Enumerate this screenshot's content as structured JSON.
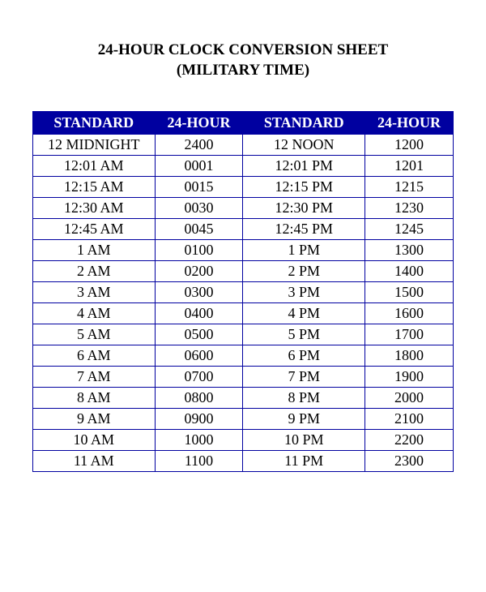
{
  "title": {
    "line1": "24-HOUR CLOCK CONVERSION SHEET",
    "line2": "(MILITARY TIME)"
  },
  "table": {
    "type": "table",
    "header_bg": "#0000a0",
    "header_color": "#ffffff",
    "border_color": "#0000a0",
    "cell_bg": "#ffffff",
    "cell_color": "#000000",
    "font_family": "Times New Roman",
    "header_fontsize": 18,
    "cell_fontsize": 18,
    "columns": [
      "STANDARD",
      "24-HOUR",
      "STANDARD",
      "24-HOUR"
    ],
    "col_widths_pct": [
      29,
      21,
      29,
      21
    ],
    "rows": [
      [
        "12 MIDNIGHT",
        "2400",
        "12 NOON",
        "1200"
      ],
      [
        "12:01 AM",
        "0001",
        "12:01 PM",
        "1201"
      ],
      [
        "12:15 AM",
        "0015",
        "12:15 PM",
        "1215"
      ],
      [
        "12:30 AM",
        "0030",
        "12:30 PM",
        "1230"
      ],
      [
        "12:45 AM",
        "0045",
        "12:45 PM",
        "1245"
      ],
      [
        "1 AM",
        "0100",
        "1 PM",
        "1300"
      ],
      [
        "2 AM",
        "0200",
        "2 PM",
        "1400"
      ],
      [
        "3 AM",
        "0300",
        "3 PM",
        "1500"
      ],
      [
        "4 AM",
        "0400",
        "4 PM",
        "1600"
      ],
      [
        "5 AM",
        "0500",
        "5 PM",
        "1700"
      ],
      [
        "6 AM",
        "0600",
        "6 PM",
        "1800"
      ],
      [
        "7 AM",
        "0700",
        "7 PM",
        "1900"
      ],
      [
        "8 AM",
        "0800",
        "8 PM",
        "2000"
      ],
      [
        "9 AM",
        "0900",
        "9 PM",
        "2100"
      ],
      [
        "10 AM",
        "1000",
        "10 PM",
        "2200"
      ],
      [
        "11 AM",
        "1100",
        "11 PM",
        "2300"
      ]
    ]
  }
}
